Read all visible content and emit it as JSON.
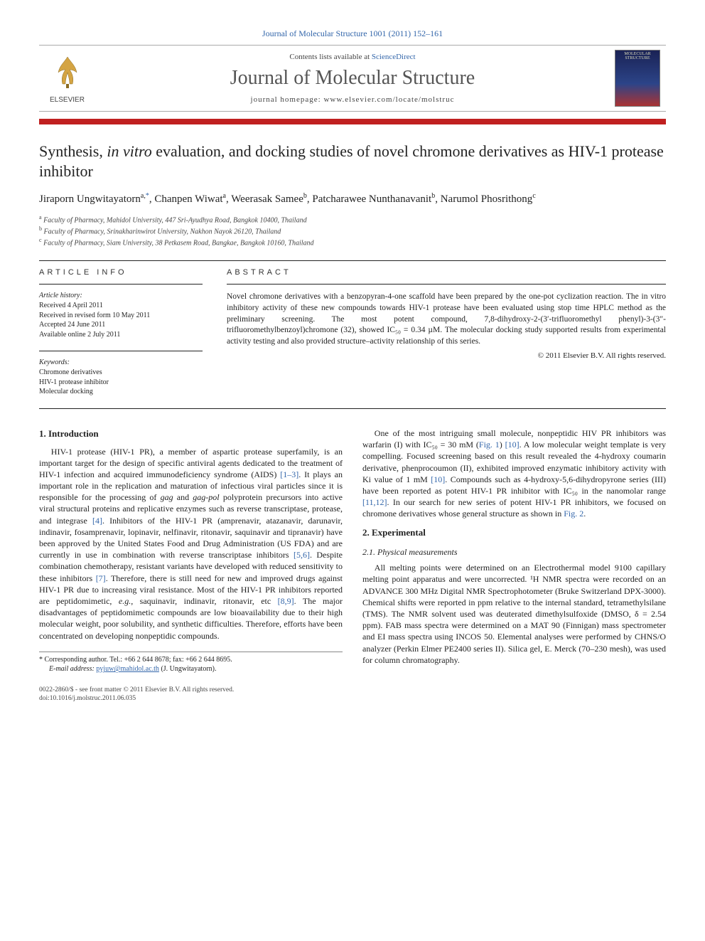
{
  "top_reference": "Journal of Molecular Structure 1001 (2011) 152–161",
  "banner": {
    "contents_prefix": "Contents lists available at ",
    "contents_link": "ScienceDirect",
    "journal": "Journal of Molecular Structure",
    "homepage_prefix": "journal homepage: ",
    "homepage": "www.elsevier.com/locate/molstruc",
    "publisher": "ELSEVIER",
    "cover_text": "MOLECULAR STRUCTURE"
  },
  "title_html": "Synthesis, <em>in vitro</em> evaluation, and docking studies of novel chromone derivatives as HIV-1 protease inhibitor",
  "authors": [
    {
      "name": "Jiraporn Ungwitayatorn",
      "sup": "a,",
      "corr": true
    },
    {
      "name": "Chanpen Wiwat",
      "sup": "a"
    },
    {
      "name": "Weerasak Samee",
      "sup": "b"
    },
    {
      "name": "Patcharawee Nunthanavanit",
      "sup": "b"
    },
    {
      "name": "Narumol Phosrithong",
      "sup": "c"
    }
  ],
  "affiliations": [
    {
      "sup": "a",
      "text": "Faculty of Pharmacy, Mahidol University, 447 Sri-Ayudhya Road, Bangkok 10400, Thailand"
    },
    {
      "sup": "b",
      "text": "Faculty of Pharmacy, Srinakharinwirot University, Nakhon Nayok 26120, Thailand"
    },
    {
      "sup": "c",
      "text": "Faculty of Pharmacy, Siam University, 38 Petkasem Road, Bangkae, Bangkok 10160, Thailand"
    }
  ],
  "article_info": {
    "heading": "article info",
    "history_label": "Article history:",
    "history": [
      "Received 4 April 2011",
      "Received in revised form 10 May 2011",
      "Accepted 24 June 2011",
      "Available online 2 July 2011"
    ],
    "keywords_label": "Keywords:",
    "keywords": [
      "Chromone derivatives",
      "HIV-1 protease inhibitor",
      "Molecular docking"
    ]
  },
  "abstract": {
    "heading": "abstract",
    "text": "Novel chromone derivatives with a benzopyran-4-one scaffold have been prepared by the one-pot cyclization reaction. The in vitro inhibitory activity of these new compounds towards HIV-1 protease have been evaluated using stop time HPLC method as the preliminary screening. The most potent compound, 7,8-dihydroxy-2-(3′-trifluoromethyl phenyl)-3-(3″-trifluoromethylbenzoyl)chromone (32), showed IC₅₀ = 0.34 µM. The molecular docking study supported results from experimental activity testing and also provided structure–activity relationship of this series.",
    "copyright": "© 2011 Elsevier B.V. All rights reserved."
  },
  "sections": {
    "intro_heading": "1. Introduction",
    "intro_p1": "HIV-1 protease (HIV-1 PR), a member of aspartic protease superfamily, is an important target for the design of specific antiviral agents dedicated to the treatment of HIV-1 infection and acquired immunodeficiency syndrome (AIDS) [1–3]. It plays an important role in the replication and maturation of infectious viral particles since it is responsible for the processing of gag and gag-pol polyprotein precursors into active viral structural proteins and replicative enzymes such as reverse transcriptase, protease, and integrase [4]. Inhibitors of the HIV-1 PR (amprenavir, atazanavir, darunavir, indinavir, fosamprenavir, lopinavir, nelfinavir, ritonavir, saquinavir and tipranavir) have been approved by the United States Food and Drug Administration (US FDA) and are currently in use in combination with reverse transcriptase inhibitors [5,6]. Despite combination chemotherapy, resistant variants have developed with reduced sensitivity to these inhibitors [7]. Therefore, there is still need for new and improved drugs against HIV-1 PR due to increasing viral resistance. Most of the HIV-1 PR inhibitors reported are peptidomimetic, e.g., saquinavir, indinavir, ritonavir, etc [8,9]. The major disadvantages of peptidomimetic compounds are low bioavailability due to their high molecular weight, poor solubility, and synthetic difficulties. Therefore, efforts have been concentrated on developing nonpeptidic compounds.",
    "intro_p2": "One of the most intriguing small molecule, nonpeptidic HIV PR inhibitors was warfarin (I) with IC₅₀ = 30 mM (Fig. 1) [10]. A low molecular weight template is very compelling. Focused screening based on this result revealed the 4-hydroxy coumarin derivative, phenprocoumon (II), exhibited improved enzymatic inhibitory activity with Ki value of 1 mM [10]. Compounds such as 4-hydroxy-5,6-dihydropyrone series (III) have been reported as potent HIV-1 PR inhibitor with IC₅₀ in the nanomolar range [11,12]. In our search for new series of potent HIV-1 PR inhibitors, we focused on chromone derivatives whose general structure as shown in Fig. 2.",
    "exp_heading": "2. Experimental",
    "phys_heading": "2.1. Physical measurements",
    "phys_p": "All melting points were determined on an Electrothermal model 9100 capillary melting point apparatus and were uncorrected. ¹H NMR spectra were recorded on an ADVANCE 300 MHz Digital NMR Spectrophotometer (Bruke Switzerland DPX-3000). Chemical shifts were reported in ppm relative to the internal standard, tetramethylsilane (TMS). The NMR solvent used was deuterated dimethylsulfoxide (DMSO, δ = 2.54 ppm). FAB mass spectra were determined on a MAT 90 (Finnigan) mass spectrometer and EI mass spectra using INCOS 50. Elemental analyses were performed by CHNS/O analyzer (Perkin Elmer PE2400 series II). Silica gel, E. Merck (70–230 mesh), was used for column chromatography."
  },
  "footnote": {
    "corr_label": "* Corresponding author. Tel.: +66 2 644 8678; fax: +66 2 644 8695.",
    "email_label": "E-mail address: ",
    "email": "pyjuw@mahidol.ac.th",
    "email_who": " (J. Ungwitayatorn)."
  },
  "bottom": {
    "line1": "0022-2860/$ - see front matter © 2011 Elsevier B.V. All rights reserved.",
    "line2": "doi:10.1016/j.molstruc.2011.06.035"
  },
  "colors": {
    "accent_red": "#c02020",
    "link_blue": "#3366aa"
  }
}
